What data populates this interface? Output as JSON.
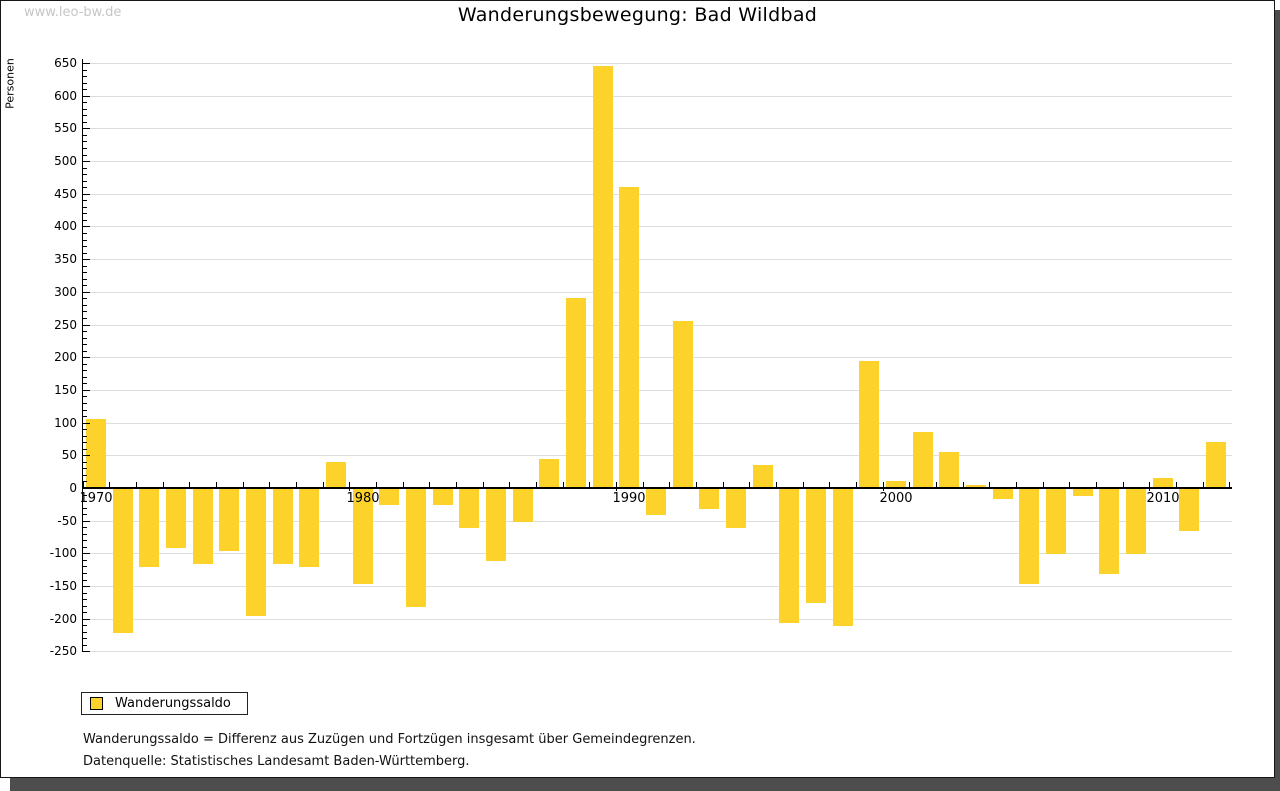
{
  "watermark": "www.leo-bw.de",
  "title": "Wanderungsbewegung: Bad Wildbad",
  "y_axis_label": "Personen",
  "legend": {
    "label": "Wanderungssaldo",
    "swatch_color": "#FDD32B"
  },
  "footnotes": [
    "Wanderungssaldo = Differenz aus Zuzügen und Fortzügen insgesamt über Gemeindegrenzen.",
    "Datenquelle: Statistisches Landesamt Baden-Württemberg."
  ],
  "colors": {
    "bar": "#FDD32B",
    "grid": "#DEDEDE",
    "axis": "#000000",
    "watermark": "#C6C6C6",
    "background": "#FFFFFF",
    "frame_shadow": "#4D4D4D"
  },
  "chart_data": {
    "type": "bar",
    "title": "Wanderungsbewegung: Bad Wildbad",
    "xlabel": "",
    "ylabel": "Personen",
    "series_name": "Wanderungssaldo",
    "x": [
      1970,
      1971,
      1972,
      1973,
      1974,
      1975,
      1976,
      1977,
      1978,
      1979,
      1980,
      1981,
      1982,
      1983,
      1984,
      1985,
      1986,
      1987,
      1988,
      1989,
      1990,
      1991,
      1992,
      1993,
      1994,
      1995,
      1996,
      1997,
      1998,
      1999,
      2000,
      2001,
      2002,
      2003,
      2004,
      2005,
      2006,
      2007,
      2008,
      2009,
      2010,
      2011,
      2012
    ],
    "values": [
      105,
      -220,
      -120,
      -90,
      -115,
      -95,
      -195,
      -115,
      -120,
      40,
      -145,
      -25,
      -180,
      -25,
      -60,
      -110,
      -50,
      45,
      290,
      645,
      460,
      -40,
      255,
      -30,
      -60,
      35,
      -205,
      -175,
      -210,
      195,
      10,
      85,
      55,
      5,
      -15,
      -145,
      -100,
      -10,
      -130,
      -100,
      15,
      -65,
      70
    ],
    "ylim": [
      -250,
      650
    ],
    "ytick_interval": 50,
    "y_minor_tick_interval": 10,
    "ytick_labels": [
      650,
      600,
      550,
      500,
      450,
      400,
      350,
      300,
      250,
      200,
      150,
      100,
      50,
      0,
      -50,
      -100,
      -150,
      -200,
      -250
    ],
    "xtick_labeled_years": [
      1970,
      1980,
      1990,
      2000,
      2010
    ],
    "grid": true,
    "legend_position": "bottom-left",
    "bar_color": "#FDD32B"
  }
}
